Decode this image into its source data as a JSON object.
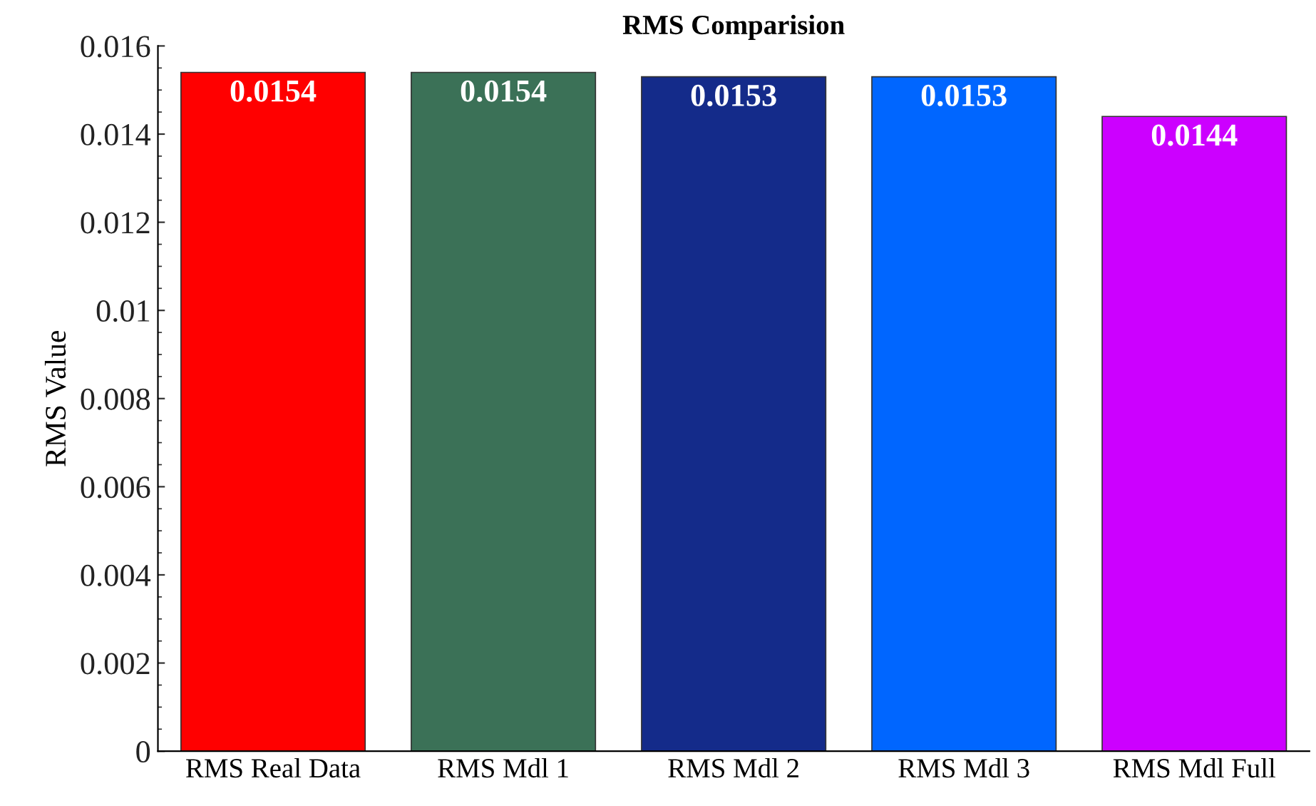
{
  "chart_data": {
    "type": "bar",
    "title": "RMS Comparision",
    "ylabel": "RMS Value",
    "categories": [
      "RMS Real Data",
      "RMS Mdl 1",
      "RMS Mdl 2",
      "RMS Mdl 3",
      "RMS Mdl Full"
    ],
    "values": [
      0.0154,
      0.0154,
      0.0153,
      0.0153,
      0.0144
    ],
    "colors": [
      "#ff0000",
      "#3b7157",
      "#142b8a",
      "#0066ff",
      "#cc00ff"
    ],
    "ylim": [
      0,
      0.016
    ],
    "yticks": [
      0,
      0.002,
      0.004,
      0.006,
      0.008,
      0.01,
      0.012,
      0.014,
      0.016
    ],
    "data_labels": true,
    "grid": false,
    "legend": false
  }
}
